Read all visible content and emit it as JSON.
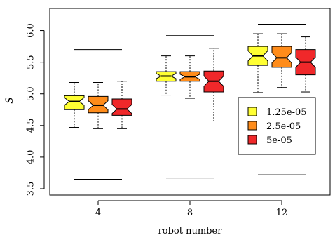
{
  "chart_data": {
    "type": "boxplot",
    "title": "",
    "xlabel": "robot number",
    "ylabel": "S",
    "ylim": [
      3.4,
      6.35
    ],
    "yticks": [
      "3.5",
      "4.0",
      "4.5",
      "5.0",
      "5.5",
      "6.0"
    ],
    "ytick_values": [
      3.5,
      4.0,
      4.5,
      5.0,
      5.5,
      6.0
    ],
    "notched": true,
    "grid": false,
    "legend_position": "right",
    "groups": [
      {
        "label": "4",
        "boxes": [
          {
            "series": "1.25e-05",
            "min": 4.47,
            "q1": 4.75,
            "median": 4.88,
            "q3": 4.97,
            "max": 5.18,
            "notch_lo": 4.82,
            "notch_hi": 4.94
          },
          {
            "series": "2.5e-05",
            "min": 4.45,
            "q1": 4.7,
            "median": 4.82,
            "q3": 4.96,
            "max": 5.18,
            "notch_lo": 4.75,
            "notch_hi": 4.89
          },
          {
            "series": "5e-05",
            "min": 4.45,
            "q1": 4.66,
            "median": 4.76,
            "q3": 4.92,
            "max": 5.2,
            "notch_lo": 4.69,
            "notch_hi": 4.83
          }
        ],
        "ref_upper": 5.7,
        "ref_lower": 3.65
      },
      {
        "label": "8",
        "boxes": [
          {
            "series": "1.25e-05",
            "min": 4.98,
            "q1": 5.2,
            "median": 5.28,
            "q3": 5.35,
            "max": 5.6,
            "notch_lo": 5.24,
            "notch_hi": 5.32
          },
          {
            "series": "2.5e-05",
            "min": 4.93,
            "q1": 5.2,
            "median": 5.27,
            "q3": 5.35,
            "max": 5.6,
            "notch_lo": 5.23,
            "notch_hi": 5.31
          },
          {
            "series": "5e-05",
            "min": 4.57,
            "q1": 5.03,
            "median": 5.2,
            "q3": 5.36,
            "max": 5.72,
            "notch_lo": 5.12,
            "notch_hi": 5.28
          }
        ],
        "ref_upper": 5.92,
        "ref_lower": 3.67
      },
      {
        "label": "12",
        "boxes": [
          {
            "series": "1.25e-05",
            "min": 5.02,
            "q1": 5.45,
            "median": 5.6,
            "q3": 5.75,
            "max": 5.95,
            "notch_lo": 5.52,
            "notch_hi": 5.68
          },
          {
            "series": "2.5e-05",
            "min": 5.1,
            "q1": 5.42,
            "median": 5.57,
            "q3": 5.75,
            "max": 5.95,
            "notch_lo": 5.49,
            "notch_hi": 5.65
          },
          {
            "series": "5e-05",
            "min": 5.03,
            "q1": 5.3,
            "median": 5.5,
            "q3": 5.7,
            "max": 5.9,
            "notch_lo": 5.42,
            "notch_hi": 5.58
          }
        ],
        "ref_upper": 6.1,
        "ref_lower": 3.72
      }
    ],
    "series": [
      {
        "name": "1.25e-05",
        "color": "#ffff33"
      },
      {
        "name": "2.5e-05",
        "color": "#ff8c1a"
      },
      {
        "name": "5e-05",
        "color": "#f0282a"
      }
    ]
  }
}
